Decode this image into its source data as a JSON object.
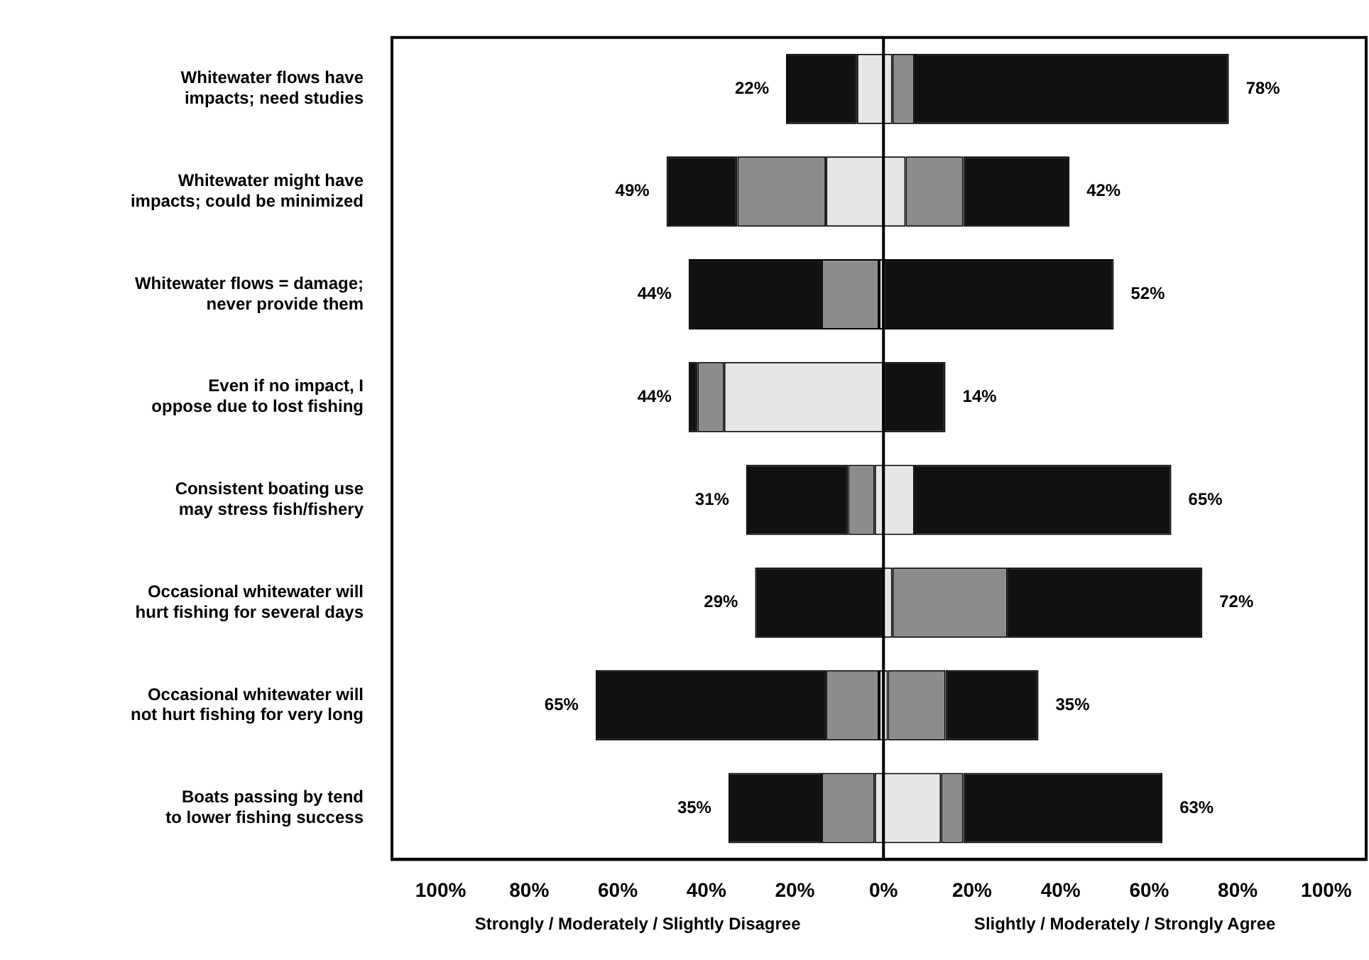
{
  "chart_data": {
    "type": "bar",
    "orientation": "horizontal",
    "stacked": true,
    "grid": false,
    "legend": false,
    "categories": [
      "Whitewater flows have impacts; need studies",
      "Whitewater might have impacts; could be minimized",
      "Whitewater flows = damage; never provide them",
      "Even if no impact, I oppose due to lost fishing",
      "Consistent boating use may stress fish/fishery",
      "Occasional whitewater will hurt fishing for several days",
      "Occasional whitewater will not hurt fishing for very long",
      "Boats passing by tend to lower fishing success"
    ],
    "series": [
      {
        "color": "#e6e6e6",
        "values": [
          -6,
          -13,
          -1,
          -36,
          -2,
          0,
          -1,
          -2
        ]
      },
      {
        "color": "#8c8c8c",
        "values": [
          0,
          -20,
          -13,
          -6,
          -6,
          0,
          -12,
          -12
        ]
      },
      {
        "color": "#111111",
        "values": [
          -16,
          -16,
          -30,
          -2,
          -23,
          -29,
          -52,
          -21
        ]
      },
      {
        "color": "#e6e6e6",
        "values": [
          2,
          5,
          0,
          0,
          7,
          2,
          1,
          13
        ]
      },
      {
        "color": "#8c8c8c",
        "values": [
          5,
          13,
          0,
          0,
          0,
          26,
          13,
          5
        ]
      },
      {
        "color": "#111111",
        "values": [
          71,
          24,
          52,
          14,
          58,
          44,
          21,
          45
        ]
      }
    ],
    "xlim": [
      -111,
      109
    ],
    "xticks": [
      {
        "value": -100,
        "label": "100%"
      },
      {
        "value": -80,
        "label": "80%"
      },
      {
        "value": -60,
        "label": "60%"
      },
      {
        "value": -40,
        "label": "40%"
      },
      {
        "value": -20,
        "label": "20%"
      },
      {
        "value": 0,
        "label": "0%"
      },
      {
        "value": 20,
        "label": "20%"
      },
      {
        "value": 40,
        "label": "40%"
      },
      {
        "value": 60,
        "label": "60%"
      },
      {
        "value": 80,
        "label": "80%"
      },
      {
        "value": 100,
        "label": "100%"
      }
    ],
    "ref_lines": [
      {
        "axis": "x",
        "value": 0,
        "color": "#000000"
      }
    ],
    "annotations": [
      "Strongly / Moderately / Slightly Disagree",
      "Slightly / Moderately / Strongly Agree",
      {
        "text": "22%",
        "x": -22,
        "y": "Whitewater flows have impacts; need studies"
      },
      {
        "text": "78%",
        "x": 78,
        "y": "Whitewater flows have impacts; need studies"
      },
      {
        "text": "49%",
        "x": -49,
        "y": "Whitewater might have impacts; could be minimized"
      },
      {
        "text": "42%",
        "x": 42,
        "y": "Whitewater might have impacts; could be minimized"
      },
      {
        "text": "44%",
        "x": -44,
        "y": "Whitewater flows = damage; never provide them"
      },
      {
        "text": "52%",
        "x": 52,
        "y": "Whitewater flows = damage; never provide them"
      },
      {
        "text": "44%",
        "x": -44,
        "y": "Even if no impact, I oppose due to lost fishing"
      },
      {
        "text": "14%",
        "x": 14,
        "y": "Even if no impact, I oppose due to lost fishing"
      },
      {
        "text": "31%",
        "x": -31,
        "y": "Consistent boating use may stress fish/fishery"
      },
      {
        "text": "65%",
        "x": 65,
        "y": "Consistent boating use may stress fish/fishery"
      },
      {
        "text": "29%",
        "x": -29,
        "y": "Occasional whitewater will hurt fishing for several days"
      },
      {
        "text": "72%",
        "x": 72,
        "y": "Occasional whitewater will hurt fishing for several days"
      },
      {
        "text": "65%",
        "x": -65,
        "y": "Occasional whitewater will not hurt fishing for very long"
      },
      {
        "text": "35%",
        "x": 35,
        "y": "Occasional whitewater will not hurt fishing for very long"
      },
      {
        "text": "35%",
        "x": -35,
        "y": "Boats passing by tend to lower fishing success"
      },
      {
        "text": "63%",
        "x": 63,
        "y": "Boats passing by tend to lower fishing success"
      }
    ]
  }
}
